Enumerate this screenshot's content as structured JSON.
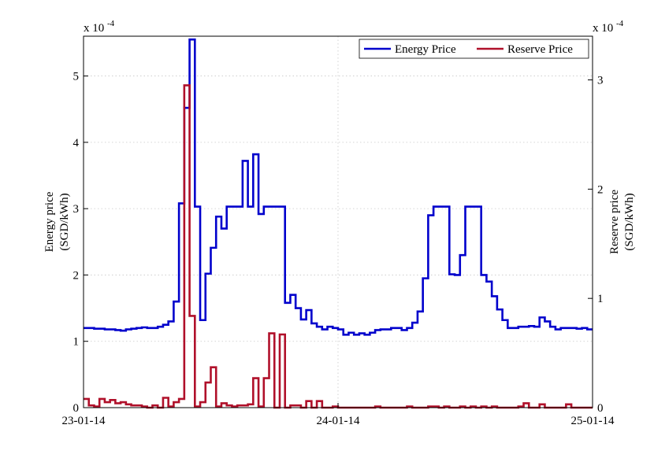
{
  "chart_data": {
    "type": "line",
    "step": true,
    "x_tick_labels": [
      "23-01-14",
      "24-01-14",
      "25-01-14"
    ],
    "x_range_hours": [
      0,
      48
    ],
    "grid": true,
    "legend_position": "top-right",
    "left_axis": {
      "label_line1": "Energy price",
      "label_line2": "(SGD/kWh)",
      "multiplier": "x 10",
      "exponent": "-4",
      "ylim": [
        0,
        5.6
      ],
      "ticks": [
        "0",
        "1",
        "2",
        "3",
        "4",
        "5"
      ]
    },
    "right_axis": {
      "label_line1": "Reserve price",
      "label_line2": "(SGD/kWh)",
      "multiplier": "x 10",
      "exponent": "-4",
      "ylim": [
        0,
        3.4
      ],
      "ticks": [
        "0",
        "1",
        "2",
        "3"
      ]
    },
    "series": [
      {
        "name": "Energy Price",
        "axis": "left",
        "color": "#0000cc",
        "x": [
          0,
          0.5,
          1,
          1.5,
          2,
          2.5,
          3,
          3.5,
          4,
          4.5,
          5,
          5.5,
          6,
          6.5,
          7,
          7.5,
          8,
          8.5,
          9,
          9.5,
          10,
          10.5,
          11,
          11.5,
          12,
          12.5,
          13,
          13.5,
          14,
          14.5,
          15,
          15.5,
          16,
          16.5,
          17,
          17.5,
          18,
          18.5,
          19,
          19.5,
          20,
          20.5,
          21,
          21.5,
          22,
          22.5,
          23,
          23.5,
          24,
          24.5,
          25,
          25.5,
          26,
          26.5,
          27,
          27.5,
          28,
          28.5,
          29,
          29.5,
          30,
          30.5,
          31,
          31.5,
          32,
          32.5,
          33,
          33.5,
          34,
          34.5,
          35,
          35.5,
          36,
          36.5,
          37,
          37.5,
          38,
          38.5,
          39,
          39.5,
          40,
          40.5,
          41,
          41.5,
          42,
          42.5,
          43,
          43.5,
          44,
          44.5,
          45,
          45.5,
          46,
          46.5,
          47,
          47.5,
          48
        ],
        "values": [
          1.2,
          1.2,
          1.19,
          1.19,
          1.18,
          1.18,
          1.17,
          1.16,
          1.18,
          1.19,
          1.2,
          1.21,
          1.2,
          1.2,
          1.22,
          1.25,
          1.3,
          1.6,
          3.08,
          4.52,
          5.55,
          3.03,
          1.32,
          2.02,
          2.41,
          2.88,
          2.7,
          3.03,
          3.03,
          3.03,
          3.72,
          3.03,
          3.82,
          2.92,
          3.03,
          3.03,
          3.03,
          3.03,
          1.58,
          1.7,
          1.5,
          1.33,
          1.47,
          1.27,
          1.22,
          1.18,
          1.22,
          1.2,
          1.18,
          1.1,
          1.13,
          1.1,
          1.12,
          1.1,
          1.13,
          1.17,
          1.18,
          1.18,
          1.2,
          1.2,
          1.17,
          1.2,
          1.28,
          1.45,
          1.95,
          2.9,
          3.03,
          3.03,
          3.03,
          2.01,
          2.0,
          2.3,
          3.03,
          3.03,
          3.03,
          2.0,
          1.9,
          1.68,
          1.48,
          1.32,
          1.2,
          1.2,
          1.22,
          1.22,
          1.23,
          1.22,
          1.36,
          1.3,
          1.22,
          1.18,
          1.2,
          1.2,
          1.2,
          1.19,
          1.2,
          1.18,
          1.18
        ]
      },
      {
        "name": "Reserve Price",
        "axis": "right",
        "color": "#b0102a",
        "x": [
          0,
          0.5,
          1,
          1.5,
          2,
          2.5,
          3,
          3.5,
          4,
          4.5,
          5,
          5.5,
          6,
          6.5,
          7,
          7.5,
          8,
          8.5,
          9,
          9.5,
          10,
          10.5,
          11,
          11.5,
          12,
          12.5,
          13,
          13.5,
          14,
          14.5,
          15,
          15.5,
          16,
          16.5,
          17,
          17.5,
          18,
          18.5,
          19,
          19.5,
          20,
          20.5,
          21,
          21.5,
          22,
          22.5,
          23,
          23.5,
          24,
          24.5,
          25,
          25.5,
          26,
          26.5,
          27,
          27.5,
          28,
          28.5,
          29,
          29.5,
          30,
          30.5,
          31,
          31.5,
          32,
          32.5,
          33,
          33.5,
          34,
          34.5,
          35,
          35.5,
          36,
          36.5,
          37,
          37.5,
          38,
          38.5,
          39,
          39.5,
          40,
          40.5,
          41,
          41.5,
          42,
          42.5,
          43,
          43.5,
          44,
          44.5,
          45,
          45.5,
          46,
          46.5,
          47,
          47.5,
          48
        ],
        "values": [
          0.08,
          0.02,
          0.01,
          0.08,
          0.05,
          0.07,
          0.04,
          0.05,
          0.03,
          0.02,
          0.02,
          0.01,
          0.0,
          0.02,
          0.0,
          0.09,
          0.01,
          0.05,
          0.08,
          2.95,
          0.84,
          0.01,
          0.05,
          0.23,
          0.37,
          0.01,
          0.04,
          0.02,
          0.01,
          0.02,
          0.02,
          0.03,
          0.27,
          0.01,
          0.27,
          0.68,
          0.0,
          0.67,
          0.0,
          0.02,
          0.02,
          0.0,
          0.06,
          0.0,
          0.06,
          0.0,
          0.0,
          0.01,
          0.0,
          0.0,
          0.0,
          0.0,
          0.0,
          0.0,
          0.0,
          0.01,
          0.0,
          0.0,
          0.0,
          0.0,
          0.0,
          0.01,
          0.0,
          0.0,
          0.0,
          0.01,
          0.01,
          0.0,
          0.01,
          0.0,
          0.0,
          0.01,
          0.0,
          0.01,
          0.0,
          0.01,
          0.0,
          0.01,
          0.0,
          0.0,
          0.0,
          0.0,
          0.01,
          0.04,
          0.0,
          0.0,
          0.03,
          0.0,
          0.0,
          0.0,
          0.0,
          0.03,
          0.0,
          0.0,
          0.0,
          0.0,
          0.0
        ]
      }
    ]
  }
}
